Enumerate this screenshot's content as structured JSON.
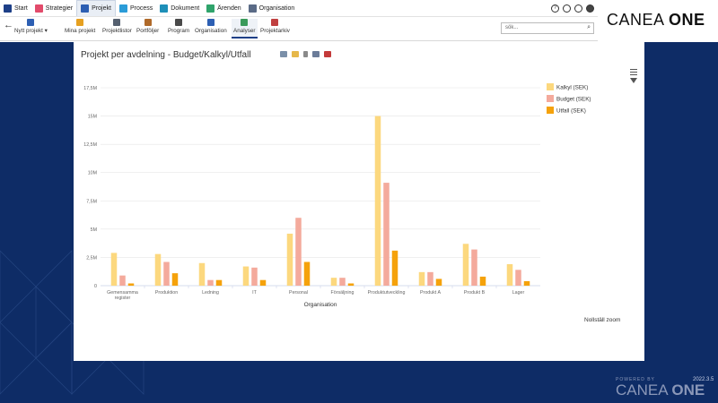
{
  "nav_tabs": [
    {
      "label": "Start",
      "icon": "home-icon",
      "color": "#1d3f87"
    },
    {
      "label": "Strategier",
      "icon": "strategy-icon",
      "color": "#e24b6b"
    },
    {
      "label": "Projekt",
      "icon": "project-icon",
      "color": "#2d5fb3",
      "active": true
    },
    {
      "label": "Process",
      "icon": "process-icon",
      "color": "#2b9cd8"
    },
    {
      "label": "Dokument",
      "icon": "document-icon",
      "color": "#1e8fb8"
    },
    {
      "label": "Ärenden",
      "icon": "cases-icon",
      "color": "#2fa36b"
    },
    {
      "label": "Organisation",
      "icon": "organisation-icon",
      "color": "#5a6b86"
    }
  ],
  "logo": {
    "prefix": "CANEA ",
    "bold": "ONE"
  },
  "toolbar": {
    "items": [
      {
        "label": "Nytt projekt ▾",
        "icon": "new-project-icon",
        "color": "#2d5fb3"
      },
      {
        "label": "Mina projekt",
        "icon": "star-icon",
        "color": "#e6a020"
      },
      {
        "label": "Projektlistor",
        "icon": "list-icon",
        "color": "#556070"
      },
      {
        "label": "Portföljer",
        "icon": "portfolio-icon",
        "color": "#b06a2a"
      },
      {
        "label": "Program",
        "icon": "program-icon",
        "color": "#4a4a4a"
      },
      {
        "label": "Organisation",
        "icon": "organisation-icon",
        "color": "#2d5fb3"
      },
      {
        "label": "Analyser",
        "icon": "analysis-icon",
        "color": "#3a9a5a",
        "active": true
      },
      {
        "label": "Projektarkiv",
        "icon": "archive-icon",
        "color": "#c04040"
      }
    ],
    "search_placeholder": "sök..."
  },
  "panel": {
    "title": "Projekt per avdelning - Budget/Kalkyl/Utfall",
    "reset_zoom": "Nollställ zoom"
  },
  "chart_data": {
    "type": "bar",
    "categories": [
      "Gemensamma register",
      "Produktion",
      "Ledning",
      "IT",
      "Personal",
      "Försäljning",
      "Produktutveckling",
      "Produkt A",
      "Produkt B",
      "Lager"
    ],
    "category_labels": [
      [
        "Gemensamma",
        "register"
      ],
      [
        "Produktion"
      ],
      [
        "Ledning"
      ],
      [
        "IT"
      ],
      [
        "Personal"
      ],
      [
        "Försäljning"
      ],
      [
        "Produktutveckling"
      ],
      [
        "Produkt A"
      ],
      [
        "Produkt B"
      ],
      [
        "Lager"
      ]
    ],
    "series": [
      {
        "name": "Kalkyl (SEK)",
        "color": "#fcd87e",
        "values": [
          2.9,
          2.8,
          2.0,
          1.7,
          4.6,
          0.7,
          15.0,
          1.2,
          3.7,
          1.9
        ]
      },
      {
        "name": "Budget (SEK)",
        "color": "#f4aa9c",
        "values": [
          0.9,
          2.1,
          0.5,
          1.6,
          6.0,
          0.7,
          9.1,
          1.2,
          3.2,
          1.4
        ]
      },
      {
        "name": "Utfall (SEK)",
        "color": "#f5a20b",
        "values": [
          0.2,
          1.1,
          0.5,
          0.5,
          2.1,
          0.2,
          3.1,
          0.6,
          0.8,
          0.4
        ]
      }
    ],
    "xlabel": "Organisation",
    "ylabel": "",
    "ylim": [
      0,
      17.5
    ],
    "yticks": [
      0,
      2.5,
      5,
      7.5,
      10,
      12.5,
      15,
      17.5
    ],
    "ytick_labels": [
      "0",
      "2,5M",
      "5M",
      "7,5M",
      "10M",
      "12,5M",
      "15M",
      "17,5M"
    ],
    "grid": true,
    "legend": "top-right"
  },
  "footer": {
    "powered": "POWERED BY",
    "version": "2022.3.5",
    "brand_prefix": "CANEA ",
    "brand_bold": "ONE"
  }
}
